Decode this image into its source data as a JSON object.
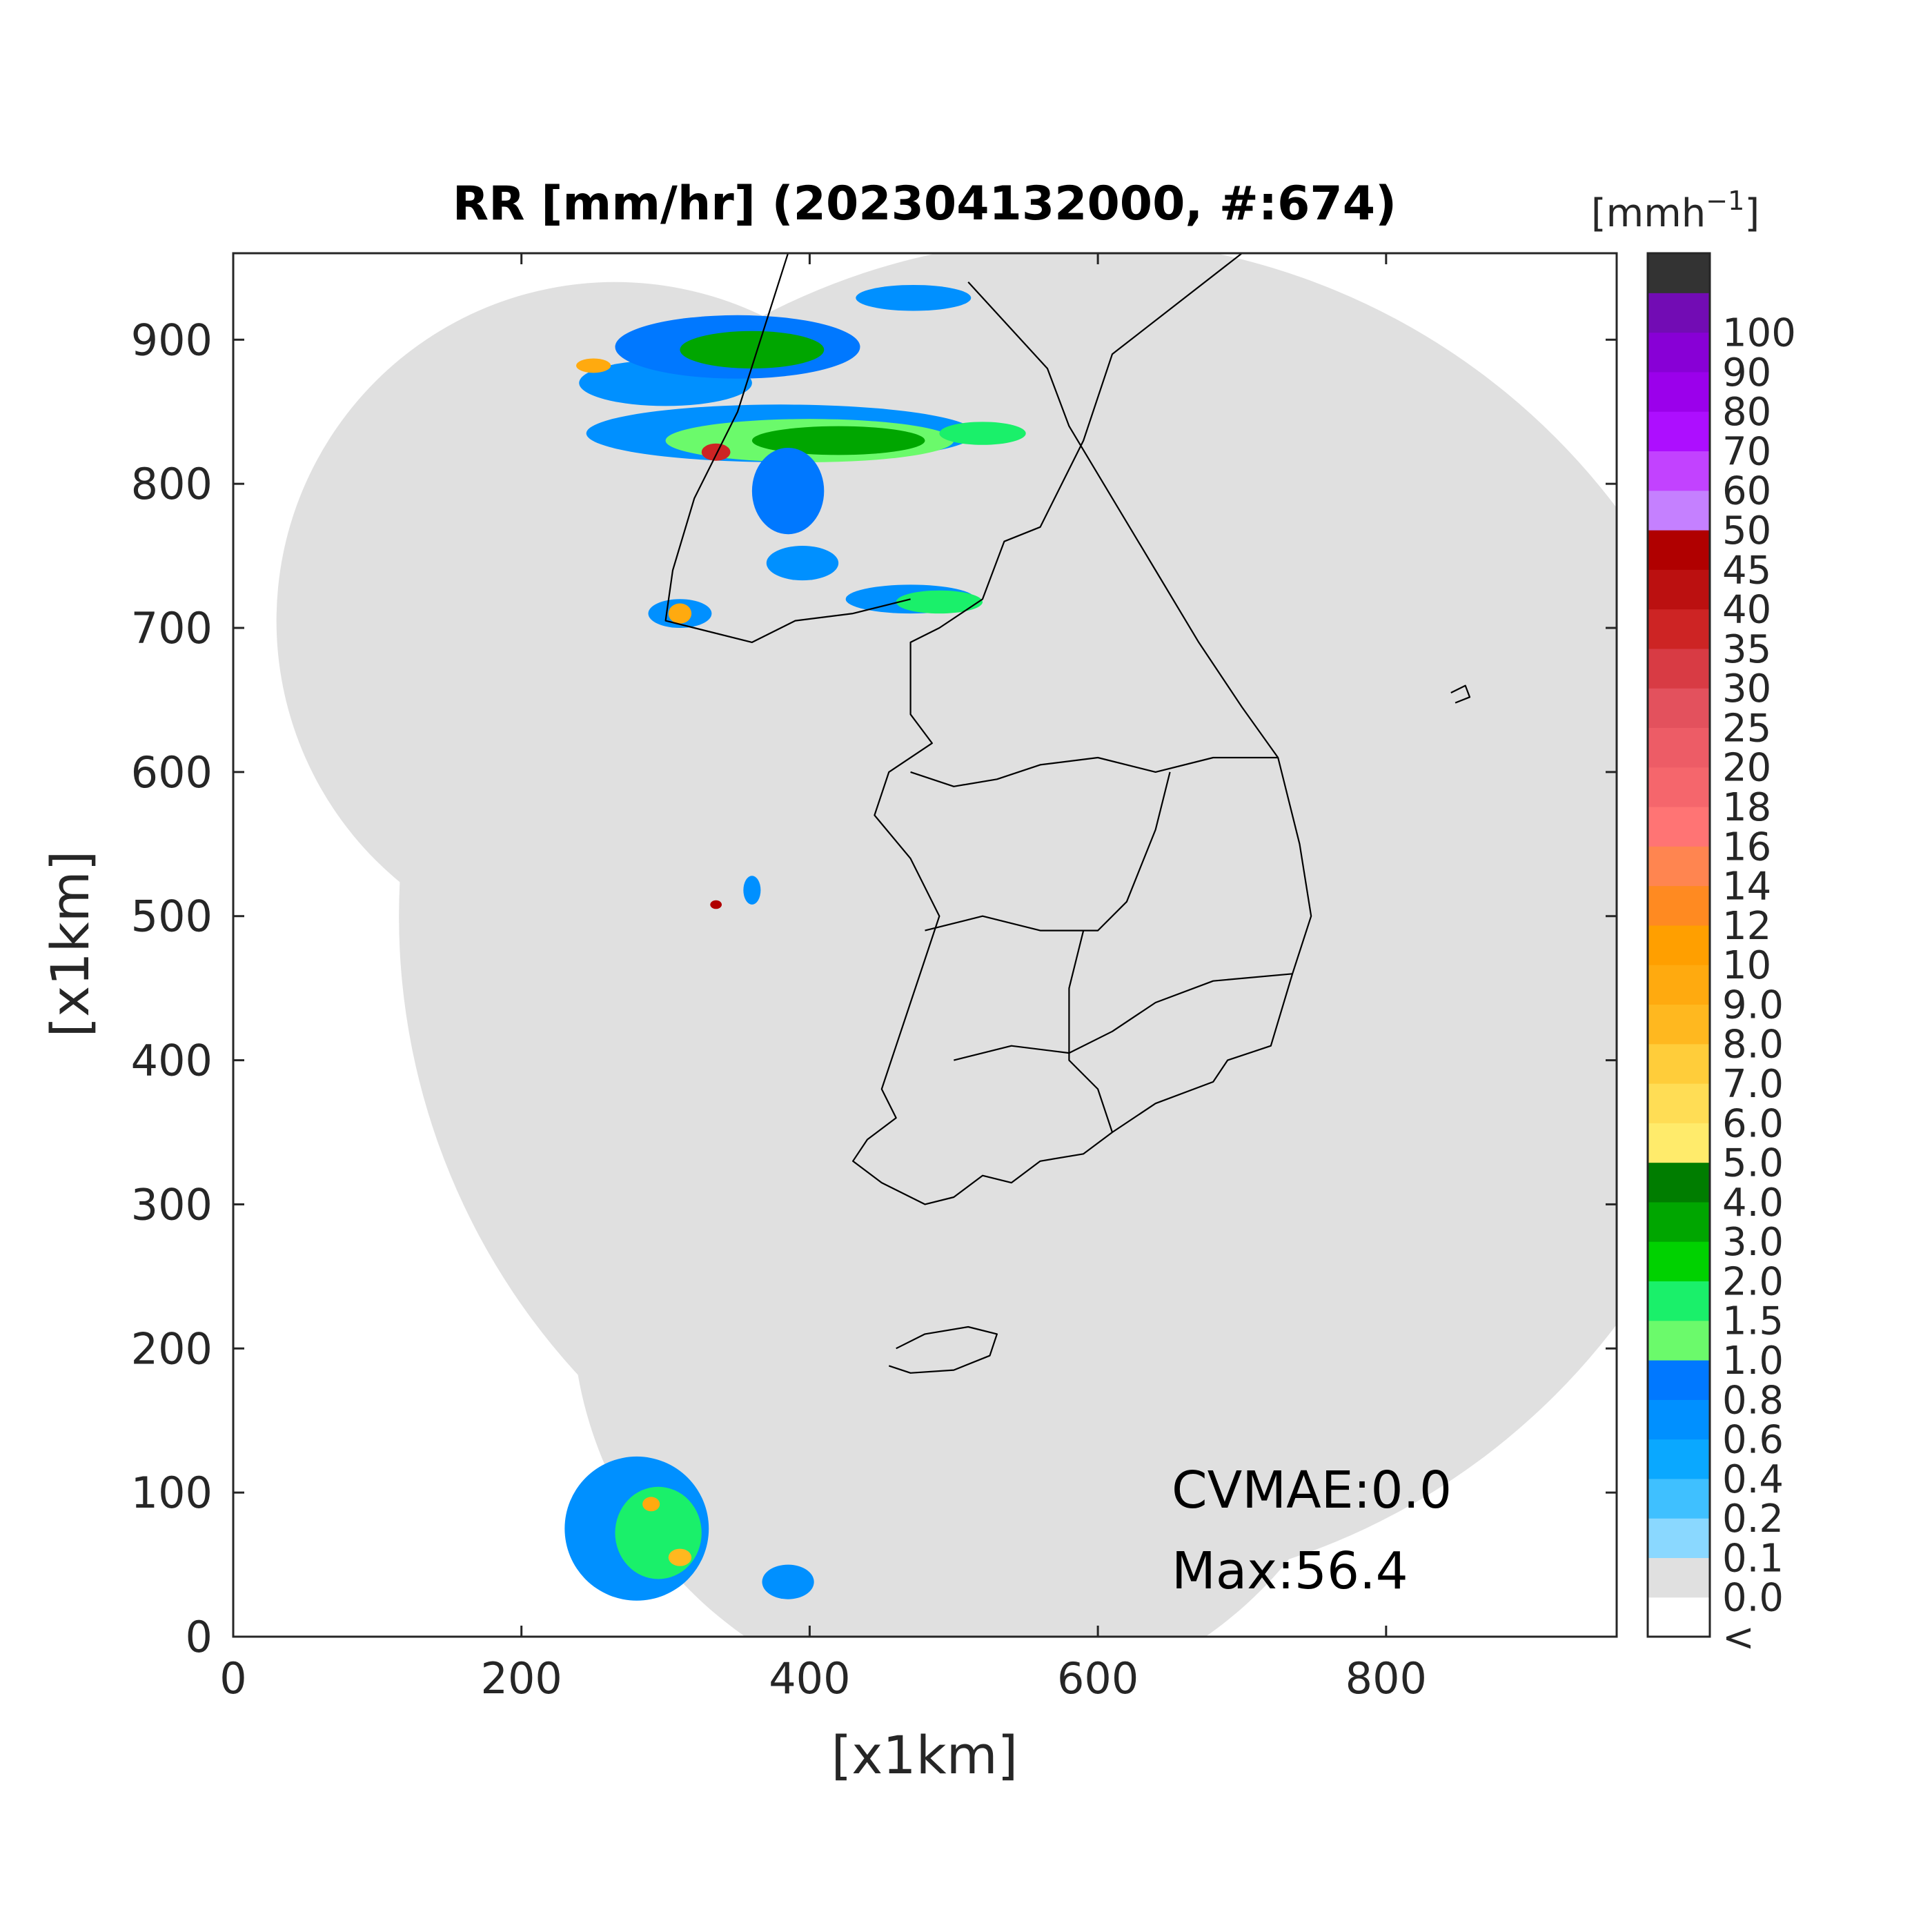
{
  "title": "RR [mm/hr] (202304132000, #:674)",
  "xlabel": "[x1km]",
  "ylabel": "[x1km]",
  "colorbar": {
    "unit_main": "[mmh",
    "unit_exp": "−1",
    "unit_close": "]",
    "levels": [
      "<",
      "0.0",
      "0.1",
      "0.2",
      "0.4",
      "0.6",
      "0.8",
      "1.0",
      "1.5",
      "2.0",
      "3.0",
      "4.0",
      "5.0",
      "6.0",
      "7.0",
      "8.0",
      "9.0",
      "10",
      "12",
      "14",
      "16",
      "18",
      "20",
      "25",
      "30",
      "35",
      "40",
      "45",
      "50",
      "60",
      "70",
      "80",
      "90",
      "100"
    ],
    "colors": [
      "#ffffff",
      "#e0e0e0",
      "#8ad8ff",
      "#3fc0ff",
      "#0aa8ff",
      "#0090ff",
      "#0078ff",
      "#6bfa6b",
      "#1af06a",
      "#00d200",
      "#00a600",
      "#007d00",
      "#ffeb6b",
      "#ffdd55",
      "#ffcd3a",
      "#ffb81f",
      "#ffaa0f",
      "#ff9f00",
      "#ff8a21",
      "#ff8550",
      "#ff7474",
      "#f5666c",
      "#ed5c66",
      "#e3515d",
      "#d83b44",
      "#cd2424",
      "#bb1010",
      "#b00000",
      "#c580ff",
      "#c242ff",
      "#ad0eff",
      "#9b00eb",
      "#8800d6",
      "#720cb4",
      "#333333"
    ]
  },
  "annotations": {
    "cvmae": "CVMAE:0.0",
    "max": "Max:56.4"
  },
  "chart_data": {
    "type": "heatmap",
    "title": "RR [mm/hr] (202304132000, #:674)",
    "xlabel": "[x1km]",
    "ylabel": "[x1km]",
    "xlim": [
      0,
      960
    ],
    "ylim": [
      0,
      960
    ],
    "xticks": [
      0,
      200,
      400,
      600,
      800
    ],
    "yticks": [
      0,
      100,
      200,
      300,
      400,
      500,
      600,
      700,
      800,
      900
    ],
    "colorbar_levels": [
      "<",
      0.0,
      0.1,
      0.2,
      0.4,
      0.6,
      0.8,
      1.0,
      1.5,
      2.0,
      3.0,
      4.0,
      5.0,
      6.0,
      7.0,
      8.0,
      9.0,
      10,
      12,
      14,
      16,
      18,
      20,
      25,
      30,
      35,
      40,
      45,
      50,
      60,
      70,
      80,
      90,
      100
    ],
    "colorbar_unit": "[mmh−1]",
    "max_value": 56.4,
    "cvmae": 0.0,
    "coverage_circles": [
      {
        "cx": 265,
        "cy": 705,
        "r": 235
      },
      {
        "cx": 585,
        "cy": 500,
        "r": 470
      },
      {
        "cx": 515,
        "cy": 230,
        "r": 280
      },
      {
        "cx": 540,
        "cy": 330,
        "r": 260
      }
    ],
    "precip_regions": [
      {
        "cx": 300,
        "cy": 870,
        "rx": 60,
        "ry": 16,
        "level": "0.4"
      },
      {
        "cx": 350,
        "cy": 895,
        "rx": 85,
        "ry": 22,
        "level": "0.6"
      },
      {
        "cx": 360,
        "cy": 893,
        "rx": 50,
        "ry": 13,
        "level": "2.0"
      },
      {
        "cx": 250,
        "cy": 882,
        "rx": 12,
        "ry": 5,
        "level": "8.0"
      },
      {
        "cx": 472,
        "cy": 929,
        "rx": 40,
        "ry": 9,
        "level": "0.4"
      },
      {
        "cx": 380,
        "cy": 835,
        "rx": 135,
        "ry": 20,
        "level": "0.4"
      },
      {
        "cx": 400,
        "cy": 830,
        "rx": 100,
        "ry": 15,
        "level": "0.8"
      },
      {
        "cx": 420,
        "cy": 830,
        "rx": 60,
        "ry": 10,
        "level": "2.0"
      },
      {
        "cx": 335,
        "cy": 822,
        "rx": 10,
        "ry": 6,
        "level": "30"
      },
      {
        "cx": 520,
        "cy": 835,
        "rx": 30,
        "ry": 8,
        "level": "1.0"
      },
      {
        "cx": 385,
        "cy": 795,
        "rx": 25,
        "ry": 30,
        "level": "0.6"
      },
      {
        "cx": 395,
        "cy": 745,
        "rx": 25,
        "ry": 12,
        "level": "0.4"
      },
      {
        "cx": 470,
        "cy": 720,
        "rx": 45,
        "ry": 10,
        "level": "0.4"
      },
      {
        "cx": 490,
        "cy": 718,
        "rx": 30,
        "ry": 8,
        "level": "1.0"
      },
      {
        "cx": 310,
        "cy": 710,
        "rx": 22,
        "ry": 10,
        "level": "0.4"
      },
      {
        "cx": 310,
        "cy": 710,
        "rx": 8,
        "ry": 7,
        "level": "8.0"
      },
      {
        "cx": 360,
        "cy": 518,
        "rx": 6,
        "ry": 10,
        "level": "0.4"
      },
      {
        "cx": 335,
        "cy": 508,
        "rx": 4,
        "ry": 3,
        "level": "40"
      },
      {
        "cx": 280,
        "cy": 75,
        "rx": 50,
        "ry": 50,
        "level": "0.4"
      },
      {
        "cx": 295,
        "cy": 72,
        "rx": 30,
        "ry": 32,
        "level": "1.0"
      },
      {
        "cx": 290,
        "cy": 92,
        "rx": 6,
        "ry": 5,
        "level": "8.0"
      },
      {
        "cx": 310,
        "cy": 55,
        "rx": 8,
        "ry": 6,
        "level": "7.0"
      },
      {
        "cx": 385,
        "cy": 38,
        "rx": 18,
        "ry": 12,
        "level": "0.4"
      }
    ],
    "boundaries": [
      {
        "name": "coastline-west",
        "points": [
          [
            700,
            960
          ],
          [
            610,
            890
          ],
          [
            590,
            830
          ],
          [
            560,
            770
          ],
          [
            535,
            760
          ],
          [
            520,
            720
          ],
          [
            490,
            700
          ],
          [
            470,
            690
          ],
          [
            470,
            665
          ],
          [
            470,
            640
          ],
          [
            485,
            620
          ],
          [
            455,
            600
          ],
          [
            445,
            570
          ],
          [
            470,
            540
          ],
          [
            490,
            500
          ],
          [
            480,
            470
          ],
          [
            470,
            440
          ],
          [
            460,
            410
          ],
          [
            450,
            380
          ],
          [
            460,
            360
          ],
          [
            440,
            345
          ],
          [
            430,
            330
          ],
          [
            450,
            315
          ],
          [
            480,
            300
          ],
          [
            500,
            305
          ],
          [
            520,
            320
          ],
          [
            540,
            315
          ],
          [
            560,
            330
          ],
          [
            590,
            335
          ],
          [
            610,
            350
          ],
          [
            640,
            370
          ],
          [
            680,
            385
          ],
          [
            690,
            400
          ],
          [
            720,
            410
          ],
          [
            735,
            460
          ],
          [
            748,
            500
          ],
          [
            740,
            550
          ],
          [
            725,
            610
          ],
          [
            700,
            645
          ],
          [
            670,
            690
          ],
          [
            640,
            740
          ],
          [
            610,
            790
          ],
          [
            580,
            840
          ],
          [
            565,
            880
          ],
          [
            510,
            940
          ]
        ]
      },
      {
        "name": "coastline-north-west",
        "points": [
          [
            385,
            960
          ],
          [
            350,
            850
          ],
          [
            320,
            790
          ],
          [
            305,
            740
          ],
          [
            300,
            705
          ],
          [
            360,
            690
          ],
          [
            390,
            705
          ],
          [
            430,
            710
          ],
          [
            470,
            720
          ]
        ]
      },
      {
        "name": "jeju-island",
        "points": [
          [
            460,
            200
          ],
          [
            480,
            210
          ],
          [
            510,
            215
          ],
          [
            530,
            210
          ],
          [
            525,
            195
          ],
          [
            500,
            185
          ],
          [
            470,
            183
          ],
          [
            455,
            188
          ]
        ]
      },
      {
        "name": "ulleung-island",
        "points": [
          [
            845,
            655
          ],
          [
            855,
            660
          ],
          [
            858,
            652
          ],
          [
            848,
            648
          ]
        ]
      },
      {
        "name": "border-inner-1",
        "points": [
          [
            470,
            600
          ],
          [
            500,
            590
          ],
          [
            530,
            595
          ],
          [
            560,
            605
          ],
          [
            600,
            610
          ],
          [
            640,
            600
          ],
          [
            680,
            610
          ],
          [
            725,
            610
          ]
        ]
      },
      {
        "name": "border-inner-2",
        "points": [
          [
            480,
            490
          ],
          [
            520,
            500
          ],
          [
            560,
            490
          ],
          [
            600,
            490
          ],
          [
            620,
            510
          ],
          [
            640,
            560
          ],
          [
            650,
            600
          ]
        ]
      },
      {
        "name": "border-inner-3",
        "points": [
          [
            500,
            400
          ],
          [
            540,
            410
          ],
          [
            580,
            405
          ],
          [
            610,
            420
          ],
          [
            640,
            440
          ],
          [
            680,
            455
          ],
          [
            735,
            460
          ]
        ]
      },
      {
        "name": "border-inner-4",
        "points": [
          [
            590,
            490
          ],
          [
            580,
            450
          ],
          [
            580,
            400
          ],
          [
            600,
            380
          ],
          [
            610,
            350
          ]
        ]
      }
    ]
  }
}
